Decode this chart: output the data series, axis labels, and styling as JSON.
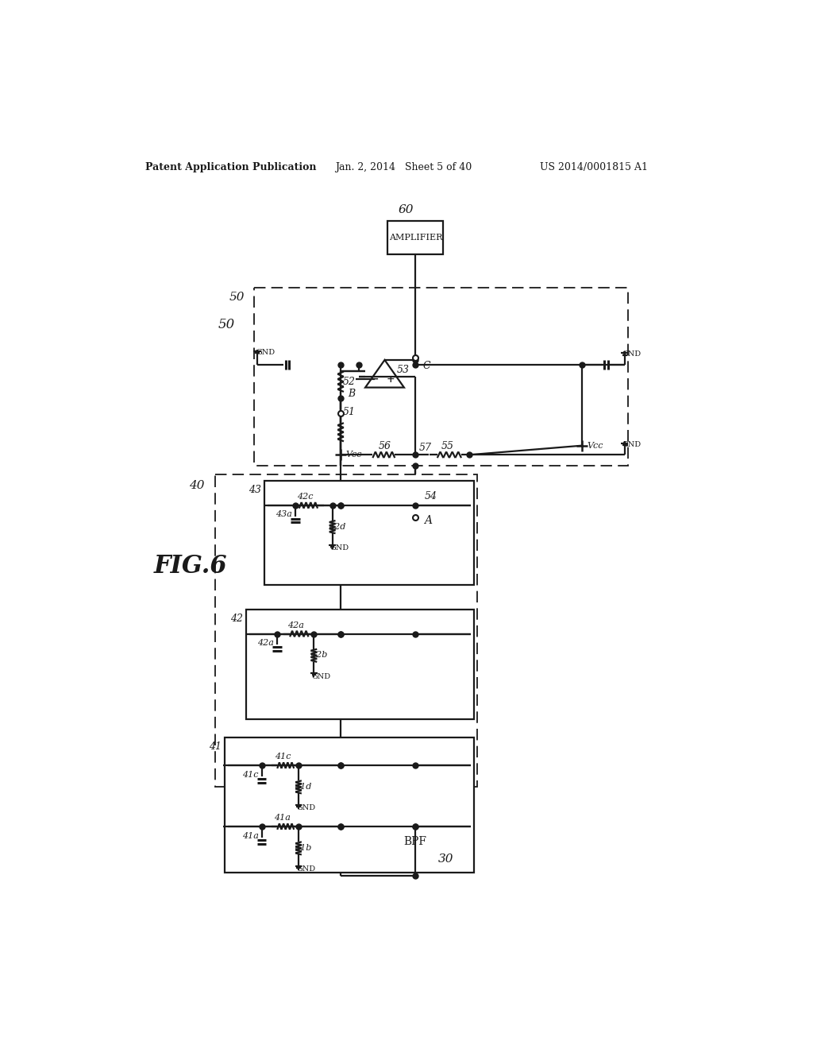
{
  "title_left": "Patent Application Publication",
  "title_mid": "Jan. 2, 2014   Sheet 5 of 40",
  "title_right": "US 2014/0001815 A1",
  "bg_color": "#ffffff",
  "lc": "#1a1a1a",
  "lw": 1.6
}
